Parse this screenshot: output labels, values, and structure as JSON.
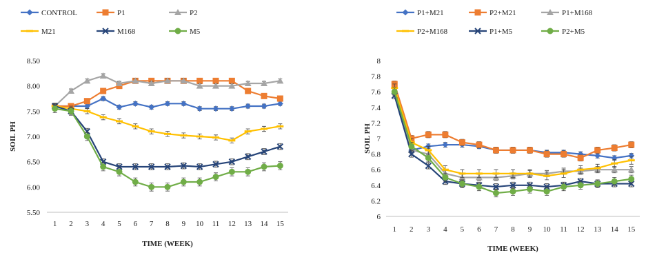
{
  "colors": {
    "blue": "#4472C4",
    "orange": "#ED7D31",
    "gray": "#A5A5A5",
    "yellow": "#FFC000",
    "darkblue": "#264478",
    "green": "#70AD47",
    "axis": "#BFBFBF"
  },
  "chart_data": [
    {
      "type": "line",
      "title": "",
      "xlabel": "TIME (WEEK)",
      "ylabel": "SOIL PH",
      "x": [
        1,
        2,
        3,
        4,
        5,
        6,
        7,
        8,
        9,
        10,
        11,
        12,
        13,
        14,
        15
      ],
      "xtick_labels": [
        "1",
        "2",
        "3",
        "4",
        "5",
        "6",
        "7",
        "8",
        "9",
        "10",
        "11",
        "12",
        "13",
        "14",
        "15"
      ],
      "ylim": [
        5.5,
        8.5
      ],
      "yticks": [
        5.5,
        6.0,
        6.5,
        7.0,
        7.5,
        8.0,
        8.5
      ],
      "ytick_labels": [
        "5.50",
        "6.00",
        "6.50",
        "7.00",
        "7.50",
        "8.00",
        "8.50"
      ],
      "grid": false,
      "legend": "top",
      "series": [
        {
          "name": "CONTROL",
          "color": "#4472C4",
          "marker": "diamond",
          "error": 0.04,
          "values": [
            7.6,
            7.6,
            7.6,
            7.75,
            7.58,
            7.65,
            7.58,
            7.65,
            7.65,
            7.55,
            7.55,
            7.55,
            7.6,
            7.6,
            7.65
          ]
        },
        {
          "name": "P1",
          "color": "#ED7D31",
          "marker": "square",
          "error": 0.04,
          "values": [
            7.6,
            7.6,
            7.7,
            7.9,
            8.0,
            8.1,
            8.1,
            8.1,
            8.1,
            8.1,
            8.1,
            8.1,
            7.9,
            7.8,
            7.75
          ]
        },
        {
          "name": "P2",
          "color": "#A5A5A5",
          "marker": "triangle",
          "error": 0.04,
          "values": [
            7.6,
            7.9,
            8.1,
            8.2,
            8.05,
            8.1,
            8.05,
            8.1,
            8.1,
            8.0,
            8.0,
            8.0,
            8.05,
            8.05,
            8.1
          ]
        },
        {
          "name": "M21",
          "color": "#FFC000",
          "marker": "dash",
          "error": 0.05,
          "values": [
            7.6,
            7.55,
            7.5,
            7.38,
            7.3,
            7.2,
            7.1,
            7.05,
            7.02,
            7.0,
            6.98,
            6.92,
            7.1,
            7.15,
            7.2
          ]
        },
        {
          "name": "M168",
          "color": "#264478",
          "marker": "x",
          "error": 0.06,
          "values": [
            7.6,
            7.5,
            7.1,
            6.5,
            6.4,
            6.4,
            6.4,
            6.4,
            6.42,
            6.4,
            6.45,
            6.5,
            6.6,
            6.7,
            6.8
          ]
        },
        {
          "name": "M5",
          "color": "#70AD47",
          "marker": "circle",
          "error": 0.08,
          "values": [
            7.55,
            7.5,
            7.0,
            6.4,
            6.3,
            6.1,
            6.0,
            6.0,
            6.1,
            6.1,
            6.2,
            6.3,
            6.3,
            6.4,
            6.42
          ]
        }
      ]
    },
    {
      "type": "line",
      "title": "",
      "xlabel": "TIME (WEEK)",
      "ylabel": "SOIL PH",
      "x": [
        1,
        2,
        3,
        4,
        5,
        6,
        7,
        8,
        9,
        10,
        11,
        12,
        13,
        14,
        15
      ],
      "xtick_labels": [
        "1",
        "2",
        "3",
        "4",
        "5",
        "6",
        "7",
        "8",
        "9",
        "10",
        "11",
        "12",
        "13",
        "14",
        "15"
      ],
      "ylim": [
        6,
        8
      ],
      "yticks": [
        6,
        6.2,
        6.4,
        6.6,
        6.8,
        7,
        7.2,
        7.4,
        7.6,
        7.8,
        8
      ],
      "ytick_labels": [
        "6",
        "6.2",
        "6.4",
        "6.6",
        "6.8",
        "7",
        "7.2",
        "7.4",
        "7.6",
        "7.8",
        "8"
      ],
      "grid": false,
      "legend": "top",
      "series": [
        {
          "name": "P1+M21",
          "color": "#4472C4",
          "marker": "diamond",
          "error": 0.03,
          "values": [
            7.6,
            6.85,
            6.9,
            6.92,
            6.92,
            6.9,
            6.85,
            6.85,
            6.85,
            6.82,
            6.82,
            6.8,
            6.78,
            6.75,
            6.78
          ]
        },
        {
          "name": "P2+M21",
          "color": "#ED7D31",
          "marker": "square",
          "error": 0.04,
          "values": [
            7.7,
            7.0,
            7.05,
            7.05,
            6.95,
            6.92,
            6.85,
            6.85,
            6.85,
            6.8,
            6.8,
            6.75,
            6.85,
            6.88,
            6.92
          ]
        },
        {
          "name": "P1+M168",
          "color": "#A5A5A5",
          "marker": "triangle",
          "error": 0.04,
          "values": [
            7.6,
            6.85,
            6.8,
            6.55,
            6.5,
            6.5,
            6.5,
            6.52,
            6.55,
            6.55,
            6.58,
            6.58,
            6.6,
            6.6,
            6.6
          ]
        },
        {
          "name": "P2+M168",
          "color": "#FFC000",
          "marker": "dash",
          "error": 0.05,
          "values": [
            7.65,
            6.95,
            6.85,
            6.6,
            6.55,
            6.55,
            6.55,
            6.55,
            6.55,
            6.52,
            6.55,
            6.6,
            6.62,
            6.68,
            6.72
          ]
        },
        {
          "name": "P1+M5",
          "color": "#264478",
          "marker": "x",
          "error": 0.04,
          "values": [
            7.55,
            6.8,
            6.65,
            6.45,
            6.42,
            6.4,
            6.38,
            6.4,
            6.4,
            6.38,
            6.4,
            6.45,
            6.42,
            6.42,
            6.42
          ]
        },
        {
          "name": "P2+M5",
          "color": "#70AD47",
          "marker": "circle",
          "error": 0.05,
          "values": [
            7.6,
            6.9,
            6.75,
            6.5,
            6.42,
            6.38,
            6.3,
            6.32,
            6.35,
            6.32,
            6.38,
            6.4,
            6.42,
            6.45,
            6.48
          ]
        }
      ]
    }
  ]
}
